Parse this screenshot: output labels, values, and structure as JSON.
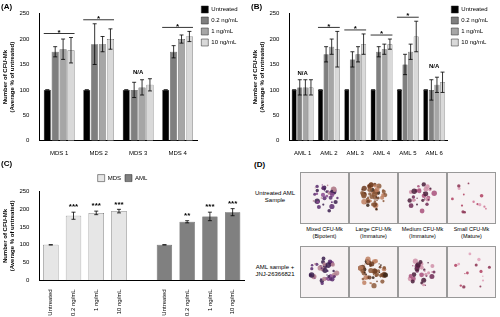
{
  "chart_data": [
    {
      "type": "bar",
      "title": "(A)",
      "y_label": [
        "Number of CFU-Mk",
        "(Average % of untreated)"
      ],
      "categories": [
        "MDS 1",
        "MDS 2",
        "MDS 3",
        "MDS 4"
      ],
      "series": [
        {
          "name": "Untreated",
          "color": "#000000",
          "values": [
            100,
            100,
            100,
            100
          ],
          "errors": [
            0,
            0,
            0,
            0
          ]
        },
        {
          "name": "0.2 ng/mL",
          "color": "#7f7f7f",
          "values": [
            175,
            190,
            100,
            175
          ],
          "errors": [
            10,
            40,
            15,
            12
          ]
        },
        {
          "name": "1 ng/mL",
          "color": "#a6a6a6",
          "values": [
            180,
            190,
            105,
            200
          ],
          "errors": [
            20,
            15,
            15,
            8
          ]
        },
        {
          "name": "10 ng/mL",
          "color": "#d9d9d9",
          "values": [
            178,
            200,
            110,
            205
          ],
          "errors": [
            25,
            20,
            12,
            10
          ]
        }
      ],
      "significance": [
        "*",
        "*",
        null,
        "*"
      ],
      "annotations": [
        null,
        null,
        "N/A",
        null
      ],
      "ylim": [
        0,
        250
      ],
      "yticks": [
        0,
        50,
        100,
        150,
        200,
        250
      ],
      "grid": false,
      "legend": "right"
    },
    {
      "type": "bar",
      "title": "(B)",
      "y_label": [
        "Number of CFU-Mk",
        "(Average % of untreated)"
      ],
      "categories": [
        "AML 1",
        "AML 2",
        "AML 3",
        "AML 4",
        "AML 5",
        "AML 6"
      ],
      "series": [
        {
          "name": "Untreated",
          "color": "#000000",
          "values": [
            100,
            100,
            100,
            100,
            100,
            100
          ],
          "errors": [
            0,
            0,
            0,
            0,
            0,
            0
          ]
        },
        {
          "name": "0.2 ng/mL",
          "color": "#7f7f7f",
          "values": [
            105,
            170,
            160,
            175,
            150,
            100
          ],
          "errors": [
            15,
            15,
            15,
            10,
            20,
            20
          ]
        },
        {
          "name": "1 ng/mL",
          "color": "#a6a6a6",
          "values": [
            105,
            185,
            170,
            180,
            175,
            110
          ],
          "errors": [
            15,
            15,
            15,
            10,
            15,
            15
          ]
        },
        {
          "name": "10 ng/mL",
          "color": "#d9d9d9",
          "values": [
            105,
            180,
            190,
            190,
            205,
            115
          ],
          "errors": [
            15,
            35,
            20,
            10,
            30,
            20
          ]
        }
      ],
      "significance": [
        null,
        "*",
        "*",
        "*",
        "*",
        null
      ],
      "annotations": [
        "N/A",
        null,
        null,
        null,
        null,
        "N/A"
      ],
      "ylim": [
        0,
        250
      ],
      "yticks": [
        0,
        50,
        100,
        150,
        200,
        250
      ],
      "grid": false,
      "legend": "right"
    },
    {
      "type": "bar",
      "title": "(C)",
      "y_label": [
        "Number of CFU-Mk",
        "(Average % of untreated)"
      ],
      "categories": [
        "Untreated",
        "0.2 ng/mL",
        "1 ng/mL",
        "10 ng/mL",
        null,
        "Untreated",
        "0.2 ng/mL",
        "1 ng/mL",
        "10 ng/mL"
      ],
      "series": [
        {
          "name": "MDS",
          "color": "#e6e6e6",
          "values": [
            100,
            182,
            190,
            195,
            null,
            null,
            null,
            null,
            null
          ],
          "errors": [
            0,
            10,
            5,
            5,
            null,
            null,
            null,
            null,
            null
          ],
          "significance": [
            null,
            "***",
            "***",
            "***",
            null,
            null,
            null,
            null,
            null
          ]
        },
        {
          "name": "AML",
          "color": "#808080",
          "values": [
            null,
            null,
            null,
            null,
            null,
            100,
            165,
            180,
            192
          ],
          "errors": [
            null,
            null,
            null,
            null,
            null,
            0,
            3,
            12,
            10
          ],
          "significance": [
            null,
            null,
            null,
            null,
            null,
            null,
            "**",
            "***",
            "***"
          ]
        }
      ],
      "ylim": [
        0,
        250
      ],
      "yticks": [
        0,
        50,
        100,
        150,
        200,
        250
      ],
      "grid": false,
      "legend": "top"
    }
  ],
  "panel_d": {
    "title": "(D)",
    "rows": [
      "Untreated AML Sample",
      "AML sample + JNJ-26366821"
    ],
    "captions": [
      [
        "Mixed CFU-Mk",
        "(Bipotent)"
      ],
      [
        "Large CFU-Mk",
        "(Immature)"
      ],
      [
        "Medium CFU-Mk",
        "(Immature)"
      ],
      [
        "Small CFU-Mk",
        "(Mature)"
      ]
    ]
  }
}
